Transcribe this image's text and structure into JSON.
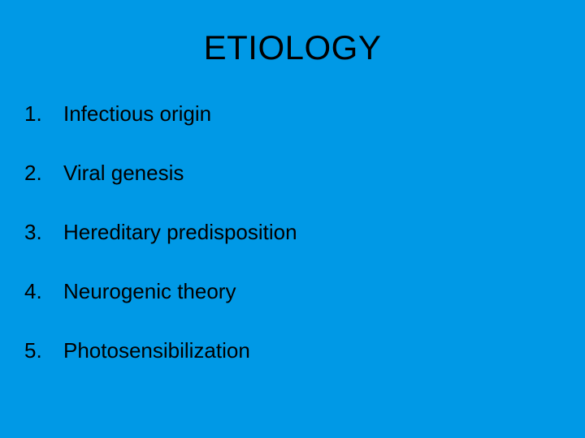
{
  "slide": {
    "title": "ETIOLOGY",
    "background_color": "#0099e6",
    "text_color": "#000000",
    "title_fontsize": 42,
    "item_fontsize": 26,
    "font_family": "Arial",
    "items": [
      {
        "number": "1.",
        "text": "Infectious origin"
      },
      {
        "number": "2.",
        "text": "Viral genesis"
      },
      {
        "number": "3.",
        "text": "Hereditary predisposition"
      },
      {
        "number": "4.",
        "text": "Neurogenic theory"
      },
      {
        "number": "5.",
        "text": "Photosensibilization"
      }
    ]
  }
}
